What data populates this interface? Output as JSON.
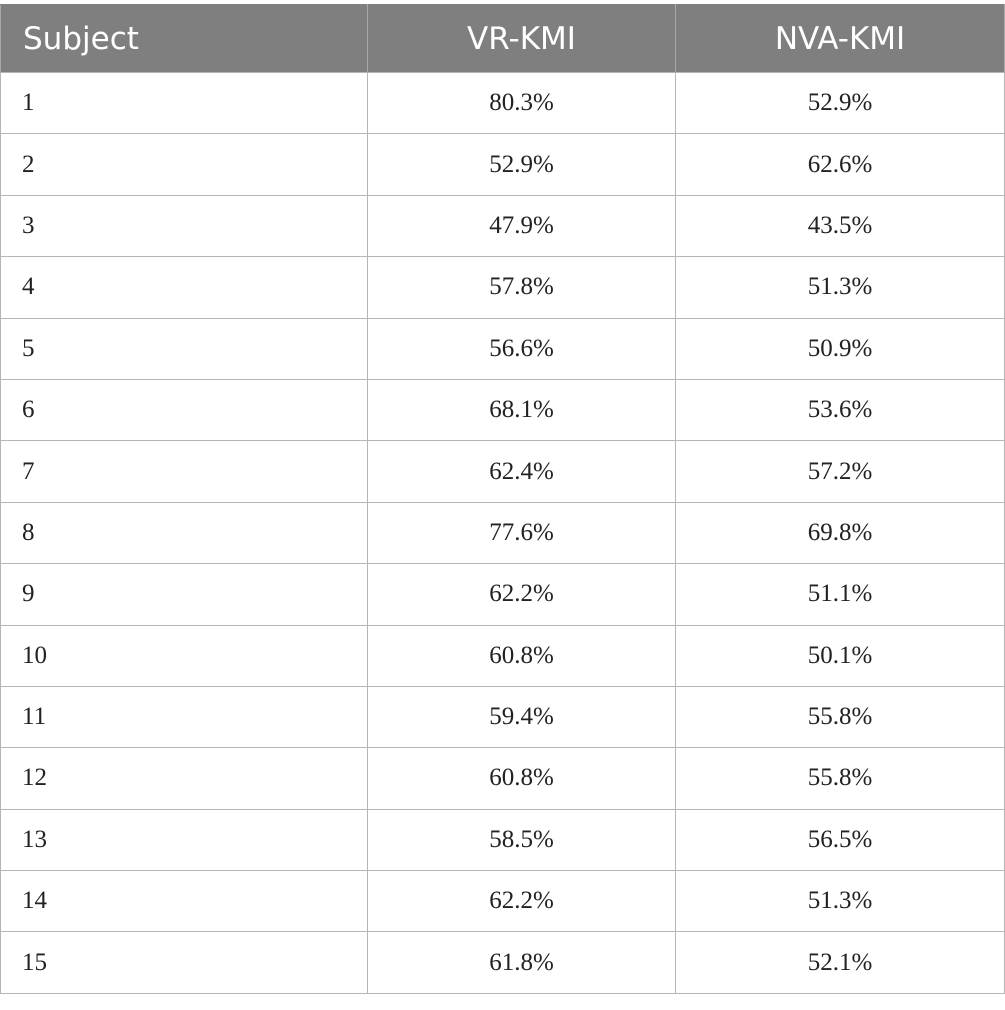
{
  "table": {
    "headers": [
      "Subject",
      "VR-KMI",
      "NVA-KMI"
    ],
    "rows": [
      [
        "1",
        "80.3%",
        "52.9%"
      ],
      [
        "2",
        "52.9%",
        "62.6%"
      ],
      [
        "3",
        "47.9%",
        "43.5%"
      ],
      [
        "4",
        "57.8%",
        "51.3%"
      ],
      [
        "5",
        "56.6%",
        "50.9%"
      ],
      [
        "6",
        "68.1%",
        "53.6%"
      ],
      [
        "7",
        "62.4%",
        "57.2%"
      ],
      [
        "8",
        "77.6%",
        "69.8%"
      ],
      [
        "9",
        "62.2%",
        "51.1%"
      ],
      [
        "10",
        "60.8%",
        "50.1%"
      ],
      [
        "11",
        "59.4%",
        "55.8%"
      ],
      [
        "12",
        "60.8%",
        "55.8%"
      ],
      [
        "13",
        "58.5%",
        "56.5%"
      ],
      [
        "14",
        "62.2%",
        "51.3%"
      ],
      [
        "15",
        "61.8%",
        "52.1%"
      ]
    ]
  },
  "colors": {
    "header_background": "#7f7f7f",
    "header_text": "#ffffff",
    "grid_line": "#b5b5b5"
  }
}
